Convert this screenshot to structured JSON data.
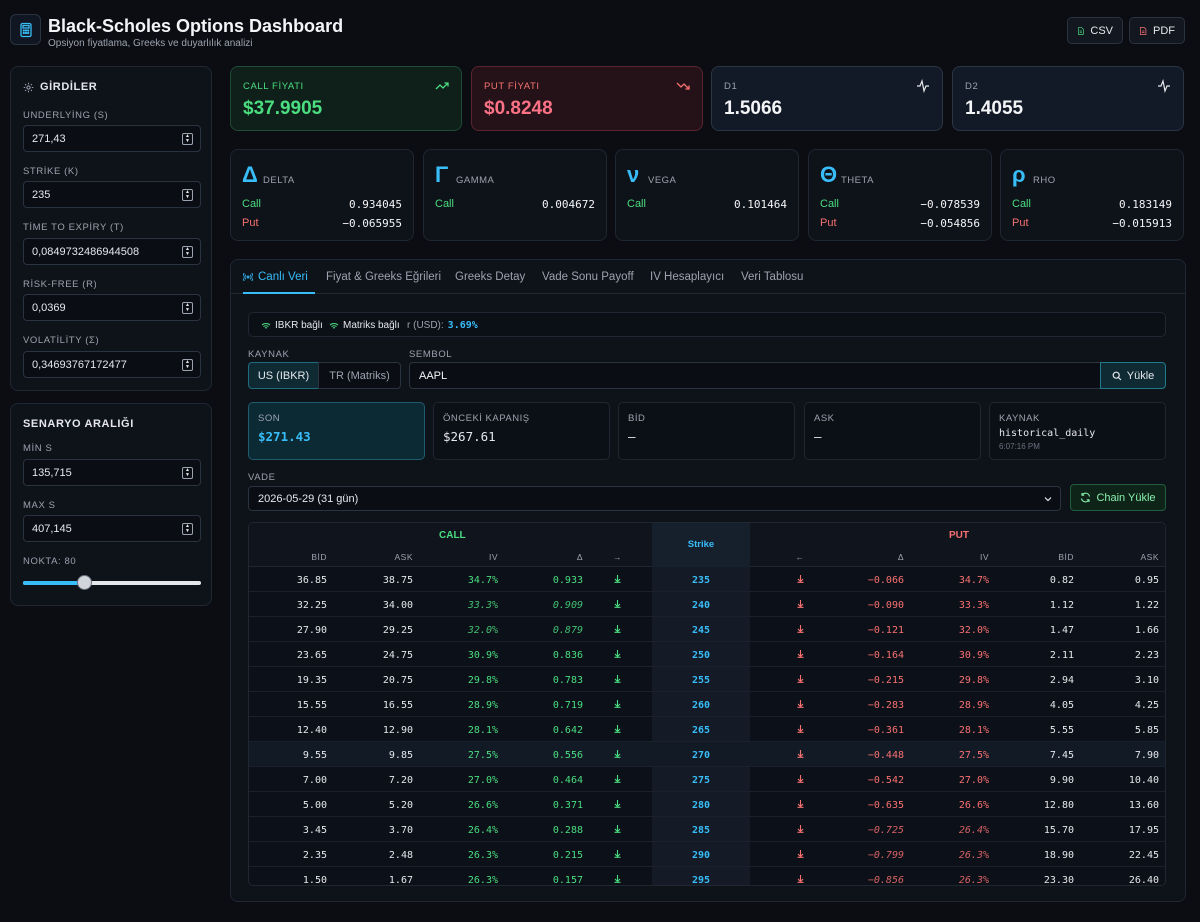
{
  "header": {
    "title": "Black-Scholes Options Dashboard",
    "subtitle": "Opsiyon fiyatlama, Greeks ve duyarlılık analizi",
    "csv_label": "CSV",
    "pdf_label": "PDF"
  },
  "inputs": {
    "title": "GİRDİLER",
    "underlying": {
      "label": "UNDERLYİNG (S)",
      "value": "271,43"
    },
    "strike": {
      "label": "STRİKE (K)",
      "value": "235"
    },
    "expiry": {
      "label": "TİME TO EXPİRY (T)",
      "value": "0,0849732486944508"
    },
    "riskfree": {
      "label": "RİSK-FREE (R)",
      "value": "0,0369"
    },
    "volatility": {
      "label": "VOLATİLİTY (Σ)",
      "value": "0,34693767172477"
    }
  },
  "scenario": {
    "title": "SENARYO ARALIĞI",
    "min": {
      "label": "MİN S",
      "value": "135,715"
    },
    "max": {
      "label": "MAX S",
      "value": "407,145"
    },
    "points_label": "NOKTA: 80",
    "slider_fraction": 0.34
  },
  "cards": {
    "call": {
      "label": "CALL FİYATI",
      "value": "$37.9905"
    },
    "put": {
      "label": "PUT FİYATI",
      "value": "$0.8248"
    },
    "d1": {
      "label": "D1",
      "value": "1.5066"
    },
    "d2": {
      "label": "D2",
      "value": "1.4055"
    }
  },
  "greeks": [
    {
      "symbol": "Δ",
      "name": "DELTA",
      "call_label": "Call",
      "call": "0.934045",
      "put_label": "Put",
      "put": "−0.065955"
    },
    {
      "symbol": "Γ",
      "name": "GAMMA",
      "call_label": "Call",
      "call": "0.004672"
    },
    {
      "symbol": "ν",
      "name": "VEGA",
      "call_label": "Call",
      "call": "0.101464"
    },
    {
      "symbol": "Θ",
      "name": "THETA",
      "call_label": "Call",
      "call": "−0.078539",
      "put_label": "Put",
      "put": "−0.054856"
    },
    {
      "symbol": "ρ",
      "name": "RHO",
      "call_label": "Call",
      "call": "0.183149",
      "put_label": "Put",
      "put": "−0.015913"
    }
  ],
  "tabs": [
    "Canlı Veri",
    "Fiyat & Greeks Eğrileri",
    "Greeks Detay",
    "Vade Sonu Payoff",
    "IV Hesaplayıcı",
    "Veri Tablosu"
  ],
  "status": {
    "ibkr": "IBKR bağlı",
    "matriks": "Matriks bağlı",
    "rate_label": "r (USD):",
    "rate_value": "3.69%"
  },
  "source": {
    "label": "KAYNAK",
    "us": "US (IBKR)",
    "tr": "TR (Matriks)"
  },
  "symbol": {
    "label": "SEMBOL",
    "value": "AAPL",
    "load_label": "Yükle"
  },
  "quote": {
    "last": {
      "label": "SON",
      "value": "$271.43"
    },
    "prev": {
      "label": "ÖNCEKİ KAPANIŞ",
      "value": "$267.61"
    },
    "bid": {
      "label": "BİD",
      "value": "—"
    },
    "ask": {
      "label": "ASK",
      "value": "—"
    },
    "source": {
      "label": "KAYNAK",
      "value": "historical_daily",
      "time": "6:07:16 PM"
    }
  },
  "expiry": {
    "label": "VADE",
    "value": "2026-05-29 (31 gün)",
    "chain_label": "Chain Yükle"
  },
  "chain": {
    "call_title": "CALL",
    "put_title": "PUT",
    "strike_title": "Strike",
    "call_cols": [
      "BİD",
      "ASK",
      "IV",
      "Δ",
      "→"
    ],
    "put_cols": [
      "←",
      "Δ",
      "IV",
      "BİD",
      "ASK"
    ],
    "rows": [
      {
        "cb": "36.85",
        "ca": "38.75",
        "civ": "34.7%",
        "cd": "0.933",
        "k": "235",
        "pd": "−0.066",
        "piv": "34.7%",
        "pb": "0.82",
        "pa": "0.95"
      },
      {
        "cb": "32.25",
        "ca": "34.00",
        "civ": "33.3%",
        "cd": "0.909",
        "k": "240",
        "pd": "−0.090",
        "piv": "33.3%",
        "pb": "1.12",
        "pa": "1.22",
        "call_it": true
      },
      {
        "cb": "27.90",
        "ca": "29.25",
        "civ": "32.0%",
        "cd": "0.879",
        "k": "245",
        "pd": "−0.121",
        "piv": "32.0%",
        "pb": "1.47",
        "pa": "1.66",
        "call_it": true
      },
      {
        "cb": "23.65",
        "ca": "24.75",
        "civ": "30.9%",
        "cd": "0.836",
        "k": "250",
        "pd": "−0.164",
        "piv": "30.9%",
        "pb": "2.11",
        "pa": "2.23"
      },
      {
        "cb": "19.35",
        "ca": "20.75",
        "civ": "29.8%",
        "cd": "0.783",
        "k": "255",
        "pd": "−0.215",
        "piv": "29.8%",
        "pb": "2.94",
        "pa": "3.10"
      },
      {
        "cb": "15.55",
        "ca": "16.55",
        "civ": "28.9%",
        "cd": "0.719",
        "k": "260",
        "pd": "−0.283",
        "piv": "28.9%",
        "pb": "4.05",
        "pa": "4.25"
      },
      {
        "cb": "12.40",
        "ca": "12.90",
        "civ": "28.1%",
        "cd": "0.642",
        "k": "265",
        "pd": "−0.361",
        "piv": "28.1%",
        "pb": "5.55",
        "pa": "5.85"
      },
      {
        "cb": "9.55",
        "ca": "9.85",
        "civ": "27.5%",
        "cd": "0.556",
        "k": "270",
        "pd": "−0.448",
        "piv": "27.5%",
        "pb": "7.45",
        "pa": "7.90",
        "atm": true
      },
      {
        "cb": "7.00",
        "ca": "7.20",
        "civ": "27.0%",
        "cd": "0.464",
        "k": "275",
        "pd": "−0.542",
        "piv": "27.0%",
        "pb": "9.90",
        "pa": "10.40"
      },
      {
        "cb": "5.00",
        "ca": "5.20",
        "civ": "26.6%",
        "cd": "0.371",
        "k": "280",
        "pd": "−0.635",
        "piv": "26.6%",
        "pb": "12.80",
        "pa": "13.60"
      },
      {
        "cb": "3.45",
        "ca": "3.70",
        "civ": "26.4%",
        "cd": "0.288",
        "k": "285",
        "pd": "−0.725",
        "piv": "26.4%",
        "pb": "15.70",
        "pa": "17.95",
        "put_it": true
      },
      {
        "cb": "2.35",
        "ca": "2.48",
        "civ": "26.3%",
        "cd": "0.215",
        "k": "290",
        "pd": "−0.799",
        "piv": "26.3%",
        "pb": "18.90",
        "pa": "22.45",
        "put_it": true
      },
      {
        "cb": "1.50",
        "ca": "1.67",
        "civ": "26.3%",
        "cd": "0.157",
        "k": "295",
        "pd": "−0.856",
        "piv": "26.3%",
        "pb": "23.30",
        "pa": "26.40",
        "put_it": true
      }
    ]
  },
  "colors": {
    "accent": "#38bdf8",
    "call": "#4ade80",
    "put": "#f87171",
    "bg": "#0b0d12"
  }
}
